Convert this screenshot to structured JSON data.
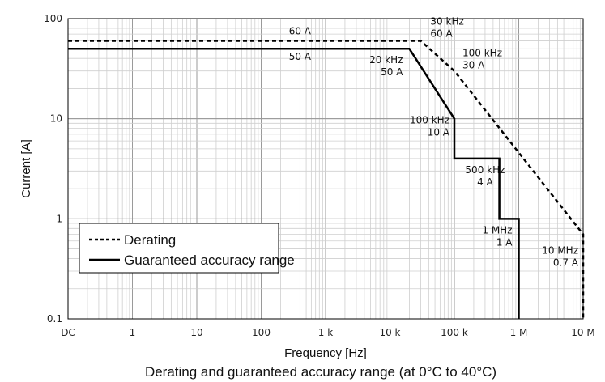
{
  "chart_data": {
    "type": "line",
    "caption": "Derating and guaranteed accuracy range (at 0°C to 40°C)",
    "xlabel": "Frequency [Hz]",
    "ylabel": "Current [A]",
    "x_scale": "log",
    "y_scale": "log",
    "xlim": [
      0.1,
      10000000
    ],
    "ylim": [
      0.1,
      100
    ],
    "x_ticks": [
      {
        "value": 0.1,
        "label": "DC"
      },
      {
        "value": 1,
        "label": "1"
      },
      {
        "value": 10,
        "label": "10"
      },
      {
        "value": 100,
        "label": "100"
      },
      {
        "value": 1000,
        "label": "1 k"
      },
      {
        "value": 10000,
        "label": "10 k"
      },
      {
        "value": 100000,
        "label": "100 k"
      },
      {
        "value": 1000000,
        "label": "1 M"
      },
      {
        "value": 10000000,
        "label": "10 M"
      }
    ],
    "y_ticks": [
      {
        "value": 100,
        "label": "100"
      },
      {
        "value": 10,
        "label": "10"
      },
      {
        "value": 1,
        "label": "1"
      },
      {
        "value": 0.1,
        "label": "0.1"
      }
    ],
    "grid": true,
    "legend_position": "bottom-left",
    "series": [
      {
        "name": "Derating",
        "style": "dashed",
        "x": [
          0.1,
          30000,
          100000,
          10000000,
          10000000
        ],
        "y": [
          60,
          60,
          30,
          0.7,
          0.1
        ]
      },
      {
        "name": "Guaranteed accuracy range",
        "style": "solid",
        "x": [
          0.1,
          20000,
          100000,
          100000,
          500000,
          500000,
          1000000,
          1000000
        ],
        "y": [
          50,
          50,
          10,
          4,
          4,
          1,
          1,
          0.1
        ]
      }
    ],
    "annotations": [
      {
        "lines": [
          "60 A"
        ],
        "x": 400,
        "y": 60,
        "anchor": "middle",
        "dy": -8
      },
      {
        "lines": [
          "50 A"
        ],
        "x": 400,
        "y": 50,
        "anchor": "middle",
        "dy": 14
      },
      {
        "lines": [
          "30 kHz",
          "60 A"
        ],
        "x": 30000,
        "y": 60,
        "anchor": "start",
        "dx": 12,
        "dy": -20
      },
      {
        "lines": [
          "100 kHz",
          "30 A"
        ],
        "x": 100000,
        "y": 30,
        "anchor": "start",
        "dx": 10,
        "dy": -18
      },
      {
        "lines": [
          "20 kHz",
          "50 A"
        ],
        "x": 20000,
        "y": 50,
        "anchor": "end",
        "dx": -8,
        "dy": 18
      },
      {
        "lines": [
          "100 kHz",
          "10 A"
        ],
        "x": 100000,
        "y": 10,
        "anchor": "end",
        "dx": -6,
        "dy": 6
      },
      {
        "lines": [
          "500 kHz",
          "4 A"
        ],
        "x": 300000,
        "y": 4,
        "anchor": "middle",
        "dy": 18
      },
      {
        "lines": [
          "1 MHz",
          "1 A"
        ],
        "x": 1000000,
        "y": 1,
        "anchor": "end",
        "dx": -8,
        "dy": 18
      },
      {
        "lines": [
          "10 MHz",
          "0.7 A"
        ],
        "x": 10000000,
        "y": 0.7,
        "anchor": "end",
        "dx": -6,
        "dy": 24
      }
    ]
  }
}
